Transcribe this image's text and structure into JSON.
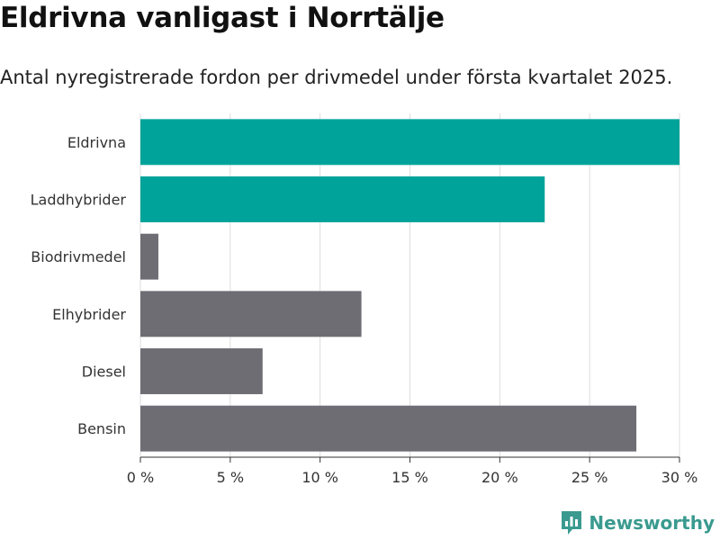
{
  "title": "Eldrivna vanligast i Norrtälje",
  "subtitle": "Antal nyregistrerade fordon per drivmedel under första kvartalet 2025.",
  "brand": "Newsworthy",
  "colors": {
    "highlight": "#00a39a",
    "other": "#6e6d74",
    "grid": "#dddddd",
    "axis": "#333333"
  },
  "chart_data": {
    "type": "bar",
    "orientation": "horizontal",
    "categories": [
      "Eldrivna",
      "Laddhybrider",
      "Biodrivmedel",
      "Elhybrider",
      "Diesel",
      "Bensin"
    ],
    "values": [
      30.0,
      22.5,
      1.0,
      12.3,
      6.8,
      27.6
    ],
    "highlighted": [
      true,
      true,
      false,
      false,
      false,
      false
    ],
    "xlim": [
      0,
      30
    ],
    "xticks": [
      0,
      5,
      10,
      15,
      20,
      25,
      30
    ],
    "xtick_labels": [
      "0 %",
      "5 %",
      "10 %",
      "15 %",
      "20 %",
      "25 %",
      "30 %"
    ],
    "grid": true
  }
}
